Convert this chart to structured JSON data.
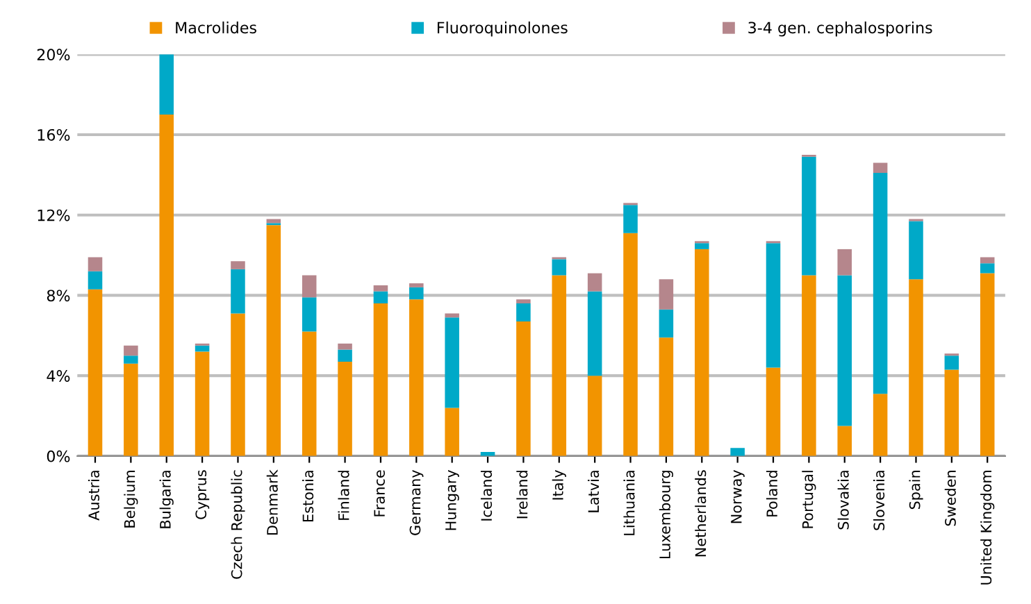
{
  "chart_data": {
    "type": "bar",
    "stacked": true,
    "categories": [
      "Austria",
      "Belgium",
      "Bulgaria",
      "Cyprus",
      "Czech Republic",
      "Denmark",
      "Estonia",
      "Finland",
      "France",
      "Germany",
      "Hungary",
      "Iceland",
      "Ireland",
      "Italy",
      "Latvia",
      "Lithuania",
      "Luxembourg",
      "Netherlands",
      "Norway",
      "Poland",
      "Portugal",
      "Slovakia",
      "Slovenia",
      "Spain",
      "Sweden",
      "United Kingdom"
    ],
    "series": [
      {
        "name": "Macrolides",
        "color": "#f29400",
        "values": [
          8.3,
          4.6,
          17.0,
          5.2,
          7.1,
          11.5,
          6.2,
          4.7,
          7.6,
          7.8,
          2.4,
          0,
          6.7,
          9.0,
          4.0,
          11.1,
          5.9,
          10.3,
          0,
          4.4,
          9.0,
          1.5,
          3.1,
          8.8,
          4.3,
          9.1
        ]
      },
      {
        "name": "Fluoroquinolones",
        "color": "#00a9c8",
        "values": [
          0.9,
          0.4,
          3.0,
          0.3,
          2.2,
          0.1,
          1.7,
          0.6,
          0.6,
          0.6,
          4.5,
          0.2,
          0.9,
          0.8,
          4.2,
          1.4,
          1.4,
          0.3,
          0.4,
          6.2,
          5.9,
          7.5,
          11.0,
          2.9,
          0.7,
          0.5
        ]
      },
      {
        "name": "3-4 gen. cephalosporins",
        "color": "#b5868c",
        "values": [
          0.7,
          0.5,
          0,
          0.1,
          0.4,
          0.2,
          1.1,
          0.3,
          0.3,
          0.2,
          0.2,
          0,
          0.2,
          0.1,
          0.9,
          0.1,
          1.5,
          0.1,
          0,
          0.1,
          0.1,
          1.3,
          0.5,
          0.1,
          0.1,
          0.3
        ]
      }
    ],
    "ylim": [
      0,
      20
    ],
    "yticks": [
      {
        "value": 0,
        "label": "0%"
      },
      {
        "value": 4,
        "label": "4%"
      },
      {
        "value": 8,
        "label": "8%"
      },
      {
        "value": 12,
        "label": "12%"
      },
      {
        "value": 16,
        "label": "16%"
      },
      {
        "value": 20,
        "label": "20%"
      }
    ],
    "grid": "y",
    "legend": "top"
  }
}
